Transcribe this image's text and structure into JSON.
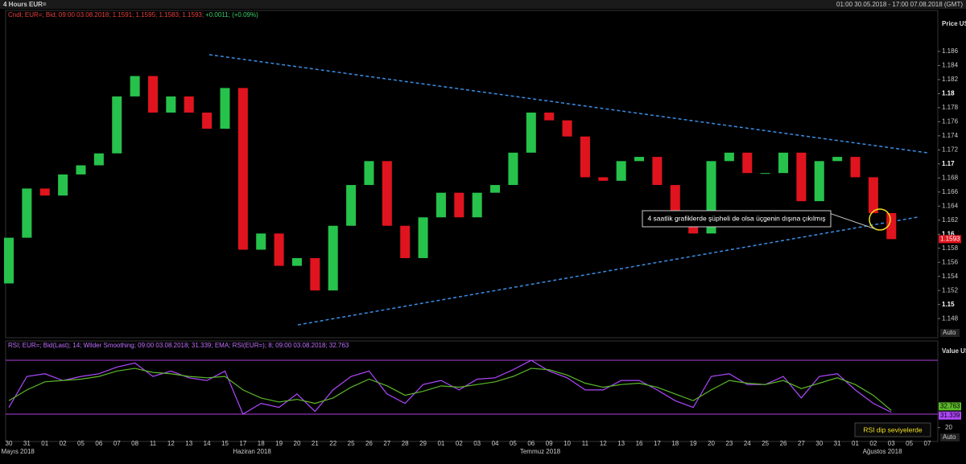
{
  "header": {
    "title": "4 Hours EUR=",
    "range": "01:00 30.05.2018 - 17:00 07.08.2018 (GMT)"
  },
  "chart_data": [
    {
      "type": "candlestick",
      "legend_text": "Cndl; EUR=; Bid; 09:00 03.08.2018; 1.1591; 1.1595; 1.1583; 1.1593;",
      "change_text": "+0.0011; (+0.09%)",
      "axis_label": "Price USD",
      "scale_label": "Auto",
      "last_label": "1.1593",
      "last_value": 1.1593,
      "annotation": "4 saatlik grafiklerde şüpheli de olsa üçgenin dışına çıkılmış",
      "up_color": "#27c24c",
      "down_color": "#e0141e",
      "categories": [
        "30",
        "31",
        "01",
        "02",
        "05",
        "06",
        "07",
        "08",
        "11",
        "12",
        "13",
        "14",
        "15",
        "17",
        "18",
        "19",
        "20",
        "21",
        "22",
        "25",
        "26",
        "27",
        "28",
        "29",
        "01",
        "02",
        "03",
        "04",
        "05",
        "06",
        "09",
        "10",
        "11",
        "12",
        "13",
        "16",
        "17",
        "18",
        "19",
        "20",
        "23",
        "24",
        "25",
        "26",
        "27",
        "30",
        "31",
        "01",
        "02",
        "03",
        "05",
        "07"
      ],
      "month_labels": [
        "Mayıs 2018",
        "Haziran 2018",
        "Temmuz 2018",
        "Ağustos 2018"
      ],
      "open": [
        1.153,
        1.1595,
        1.1665,
        1.1655,
        1.1685,
        1.1698,
        1.1715,
        1.1796,
        1.1825,
        1.1773,
        1.1796,
        1.1773,
        1.175,
        1.1808,
        1.1578,
        1.1601,
        1.1555,
        1.1566,
        1.152,
        1.1612,
        1.167,
        1.1704,
        1.1612,
        1.1566,
        1.1624,
        1.1659,
        1.1624,
        1.1659,
        1.167,
        1.1716,
        1.1773,
        1.1762,
        1.1739,
        1.1681,
        1.1676,
        1.1704,
        1.171,
        1.167,
        1.1624,
        1.1601,
        1.1704,
        1.1716,
        1.1687,
        1.1687,
        1.1716,
        1.1647,
        1.1704,
        1.171,
        1.1681,
        1.163,
        null,
        null
      ],
      "close": [
        1.1595,
        1.1665,
        1.1655,
        1.1685,
        1.1698,
        1.1715,
        1.1796,
        1.1825,
        1.1773,
        1.1796,
        1.1773,
        1.175,
        1.1808,
        1.1578,
        1.1601,
        1.1555,
        1.1566,
        1.152,
        1.1612,
        1.167,
        1.1704,
        1.1612,
        1.1566,
        1.1624,
        1.1659,
        1.1624,
        1.1659,
        1.167,
        1.1716,
        1.1773,
        1.1762,
        1.1739,
        1.1681,
        1.1676,
        1.1704,
        1.171,
        1.167,
        1.1624,
        1.1601,
        1.1704,
        1.1716,
        1.1687,
        1.1687,
        1.1716,
        1.1647,
        1.1704,
        1.171,
        1.1681,
        1.163,
        1.1593,
        null,
        null
      ],
      "ylim": [
        1.1455,
        1.1908
      ],
      "yticks": [
        1.148,
        1.15,
        1.152,
        1.154,
        1.156,
        1.158,
        1.16,
        1.162,
        1.164,
        1.166,
        1.168,
        1.17,
        1.172,
        1.174,
        1.176,
        1.178,
        1.18,
        1.182,
        1.184,
        1.186
      ]
    },
    {
      "type": "line",
      "legend_text": "RSI; EUR=; Bid(Last); 14; Wilder Smoothing; 09:00 03.08.2018; 31.339; EMA; RSI(EUR=); 8; 09:00 03.08.2018; 32.763",
      "axis_label": "Value USD",
      "scale_label": "Auto",
      "annotation": "RSI dip seviyelerde",
      "levels": [
        30,
        70
      ],
      "level_color": "#b040e0",
      "ylim": [
        10.3,
        74.8
      ],
      "yticks": [
        20
      ],
      "series": [
        {
          "name": "RSI",
          "color": "#b048ff",
          "values": [
            35,
            58,
            60,
            55,
            58,
            60,
            65,
            68,
            58,
            62,
            57,
            55,
            62,
            30,
            38,
            35,
            45,
            32,
            48,
            58,
            62,
            45,
            38,
            52,
            55,
            48,
            56,
            57,
            63,
            70,
            62,
            57,
            48,
            48,
            55,
            55,
            48,
            40,
            35,
            58,
            60,
            52,
            52,
            58,
            42,
            58,
            60,
            48,
            38,
            31.339,
            null,
            null
          ],
          "last_label": "31.339"
        },
        {
          "name": "EMA",
          "color": "#5cb82a",
          "values": [
            40,
            48,
            54,
            55,
            56,
            58,
            62,
            64,
            61,
            60,
            58,
            57,
            58,
            48,
            42,
            39,
            41,
            38,
            42,
            50,
            56,
            51,
            44,
            47,
            51,
            50,
            52,
            54,
            58,
            64,
            63,
            59,
            53,
            50,
            52,
            53,
            50,
            45,
            40,
            48,
            55,
            53,
            52,
            55,
            49,
            53,
            57,
            52,
            44,
            32.763,
            null,
            null
          ],
          "last_label": "32.763"
        }
      ]
    }
  ]
}
